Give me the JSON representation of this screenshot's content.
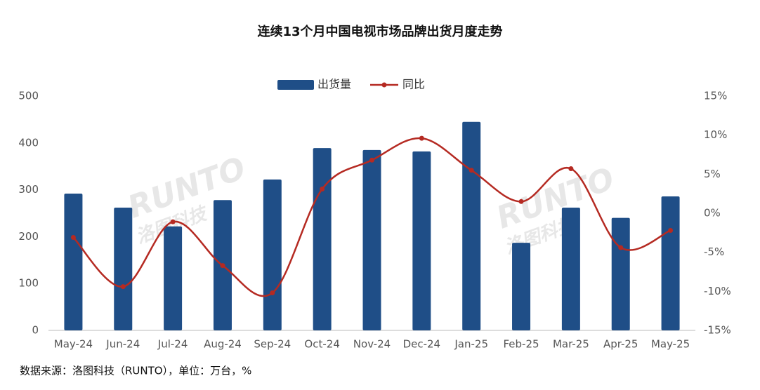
{
  "chart_data": {
    "type": "bar-line",
    "title": "连续13个月中国电视市场品牌出货月度走势",
    "watermark": [
      "RUNTO",
      "洛图科技"
    ],
    "note": "数据来源：洛图科技（RUNTO），单位：万台，%",
    "categories": [
      "May-24",
      "Jun-24",
      "Jul-24",
      "Aug-24",
      "Sep-24",
      "Oct-24",
      "Nov-24",
      "Dec-24",
      "Jan-25",
      "Feb-25",
      "Mar-25",
      "Apr-25",
      "May-25"
    ],
    "series": [
      {
        "name": "出货量",
        "type": "bar",
        "color": "#1f4e87",
        "values": [
          292,
          262,
          222,
          278,
          322,
          389,
          385,
          382,
          445,
          187,
          262,
          240,
          286
        ]
      },
      {
        "name": "同比",
        "type": "line",
        "axis": "y2",
        "color": "#b52a22",
        "values": [
          -3.1,
          -9.4,
          -1.1,
          -6.7,
          -10.2,
          3.1,
          6.8,
          9.6,
          5.5,
          1.5,
          5.7,
          -4.4,
          -2.2
        ]
      }
    ],
    "ylim": [
      0,
      500
    ],
    "yticks": [
      0,
      100,
      200,
      300,
      400,
      500
    ],
    "y2lim": [
      -15,
      15
    ],
    "y2ticks": [
      {
        "value": -15,
        "label": "-15%"
      },
      {
        "value": -10,
        "label": "-10%"
      },
      {
        "value": -5,
        "label": "-5%"
      },
      {
        "value": 0,
        "label": "0%"
      },
      {
        "value": 5,
        "label": "5%"
      },
      {
        "value": 10,
        "label": "10%"
      },
      {
        "value": 15,
        "label": "15%"
      }
    ],
    "grid": false
  }
}
